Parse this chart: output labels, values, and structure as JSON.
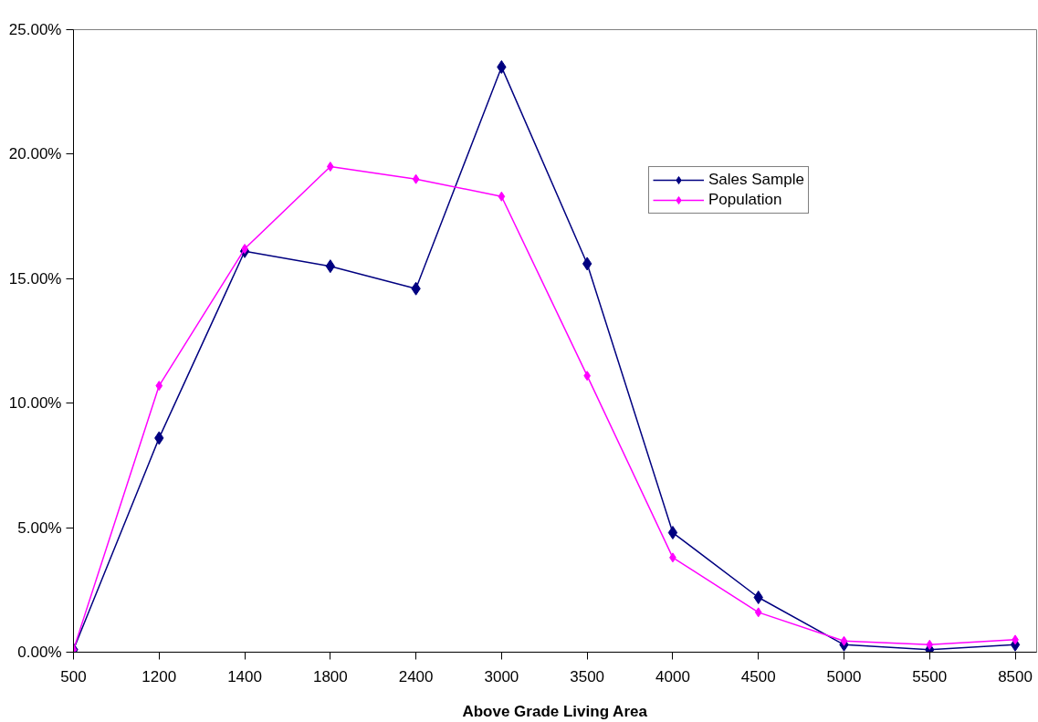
{
  "chart_data": {
    "type": "line",
    "xlabel": "Above Grade Living Area",
    "categories": [
      "500",
      "1200",
      "1400",
      "1800",
      "2400",
      "3000",
      "3500",
      "4000",
      "4500",
      "5000",
      "5500",
      "8500"
    ],
    "series": [
      {
        "name": "Sales Sample",
        "color": "#000080",
        "values": [
          0.1,
          8.6,
          16.1,
          15.5,
          14.6,
          23.5,
          15.6,
          4.8,
          2.2,
          0.3,
          0.1,
          0.3
        ]
      },
      {
        "name": "Population",
        "color": "#ff00ff",
        "values": [
          0.1,
          10.7,
          16.2,
          19.5,
          19.0,
          18.3,
          11.1,
          3.8,
          1.6,
          0.45,
          0.3,
          0.5
        ]
      }
    ],
    "ylim": [
      0,
      25
    ],
    "yticks": [
      {
        "value": 0,
        "label": "0.00%"
      },
      {
        "value": 5,
        "label": "5.00%"
      },
      {
        "value": 10,
        "label": "10.00%"
      },
      {
        "value": 15,
        "label": "15.00%"
      },
      {
        "value": 20,
        "label": "20.00%"
      },
      {
        "value": 25,
        "label": "25.00%"
      }
    ],
    "marker": "diamond",
    "legend": "top right",
    "grid": false
  }
}
